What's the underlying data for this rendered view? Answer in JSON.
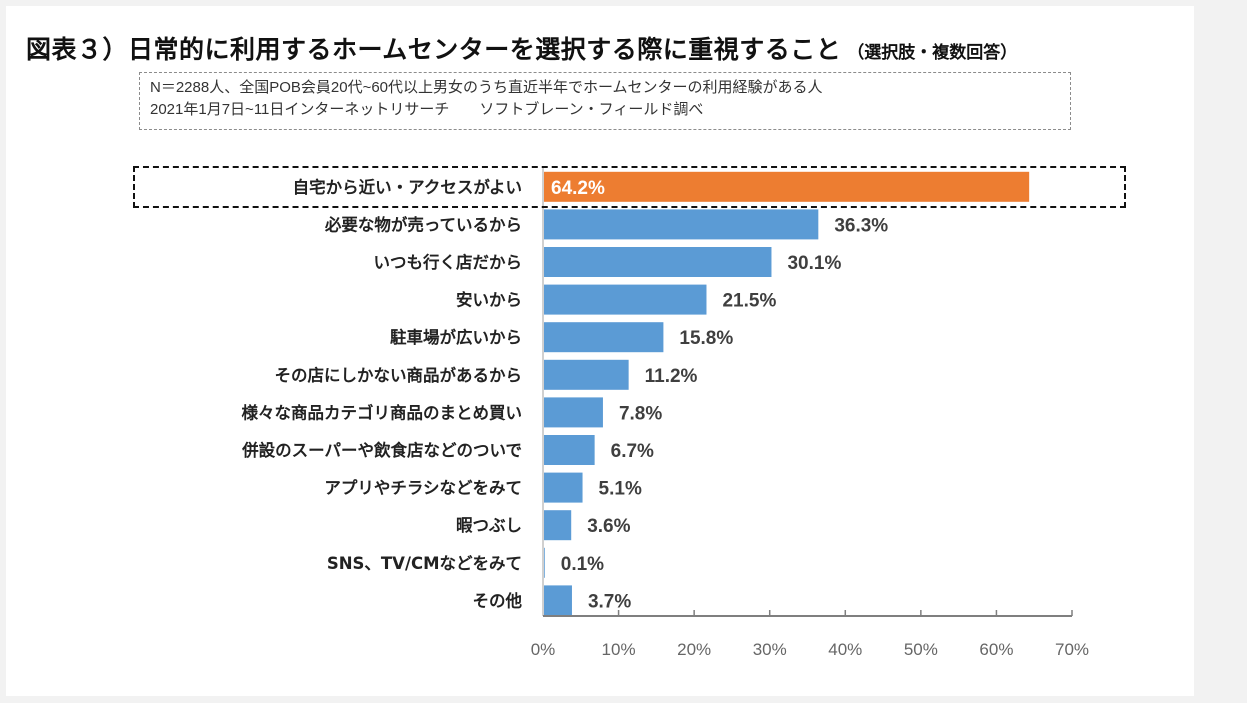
{
  "header": {
    "title": "図表３）日常的に利用するホームセンターを選択する際に重視すること",
    "title_note": "（選択肢・複数回答）"
  },
  "note": {
    "line1": "N＝2288人、全国POB会員20代~60代以上男女のうち直近半年でホームセンターの利用経験がある人",
    "line2": "2021年1月7日~11日インターネットリサーチ　　ソフトブレーン・フィールド調べ"
  },
  "colors": {
    "highlight_bar": "#ed7d31",
    "default_bar": "#5b9bd5",
    "axis": "#7f7f7f"
  },
  "chart_data": {
    "type": "bar",
    "orientation": "horizontal",
    "title": "日常的に利用するホームセンターを選択する際に重視すること",
    "xlabel": "",
    "ylabel": "",
    "xlim": [
      0,
      70
    ],
    "x_ticks": [
      0,
      10,
      20,
      30,
      40,
      50,
      60,
      70
    ],
    "x_tick_labels": [
      "0%",
      "10%",
      "20%",
      "30%",
      "40%",
      "50%",
      "60%",
      "70%"
    ],
    "grid": false,
    "legend": "none",
    "highlighted_index": 0,
    "categories": [
      "自宅から近い・アクセスがよい",
      "必要な物が売っているから",
      "いつも行く店だから",
      "安いから",
      "駐車場が広いから",
      "その店にしかない商品があるから",
      "様々な商品カテゴリ商品のまとめ買い",
      "併設のスーパーや飲食店などのついで",
      "アプリやチラシなどをみて",
      "暇つぶし",
      "SNS、TV/CMなどをみて",
      "その他"
    ],
    "values": [
      64.2,
      36.3,
      30.1,
      21.5,
      15.8,
      11.2,
      7.8,
      6.7,
      5.1,
      3.6,
      0.1,
      3.7
    ],
    "value_labels": [
      "64.2%",
      "36.3%",
      "30.1%",
      "21.5%",
      "15.8%",
      "11.2%",
      "7.8%",
      "6.7%",
      "5.1%",
      "3.6%",
      "0.1%",
      "3.7%"
    ],
    "unit": "%"
  }
}
